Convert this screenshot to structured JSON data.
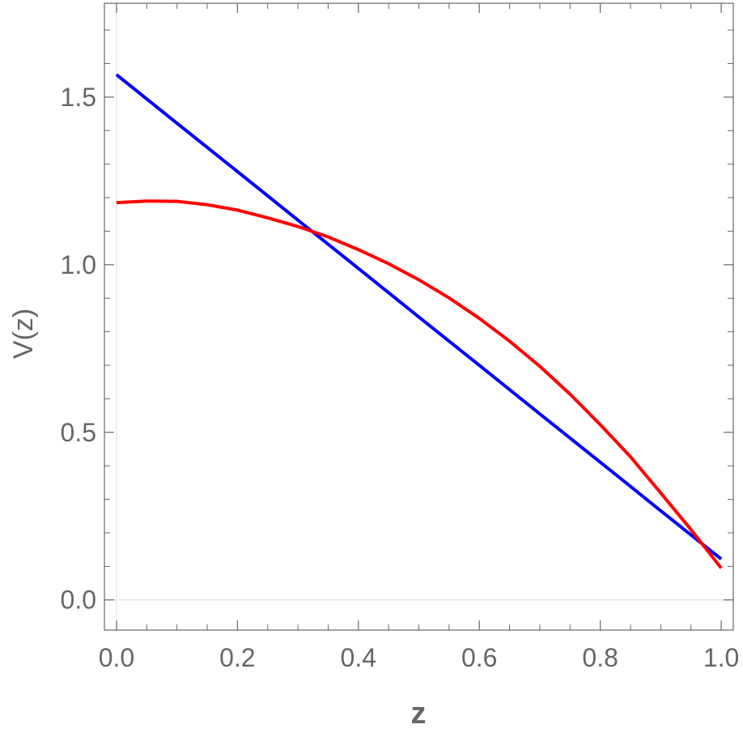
{
  "chart_data": {
    "type": "line",
    "xlabel": "z",
    "ylabel": "V(z)",
    "xlim": [
      -0.02,
      1.02
    ],
    "ylim": [
      -0.09,
      1.78
    ],
    "x_ticks": [
      0.0,
      0.2,
      0.4,
      0.6,
      0.8,
      1.0
    ],
    "x_tick_labels": [
      "0.0",
      "0.2",
      "0.4",
      "0.6",
      "0.8",
      "1.0"
    ],
    "y_ticks": [
      0.0,
      0.5,
      1.0,
      1.5
    ],
    "y_tick_labels": [
      "0.0",
      "0.5",
      "1.0",
      "1.5"
    ],
    "grid": false,
    "series": [
      {
        "color": "#0000ff",
        "x": [
          0.0,
          0.1,
          0.2,
          0.3,
          0.4,
          0.5,
          0.6,
          0.7,
          0.8,
          0.9,
          1.0
        ],
        "y": [
          1.567,
          1.422,
          1.278,
          1.133,
          0.989,
          0.844,
          0.7,
          0.555,
          0.411,
          0.266,
          0.122
        ]
      },
      {
        "color": "#ff0000",
        "x": [
          0.0,
          0.05,
          0.1,
          0.15,
          0.2,
          0.25,
          0.3,
          0.35,
          0.4,
          0.45,
          0.5,
          0.55,
          0.6,
          0.65,
          0.7,
          0.75,
          0.8,
          0.85,
          0.9,
          0.95,
          1.0
        ],
        "y": [
          1.185,
          1.19,
          1.189,
          1.179,
          1.163,
          1.14,
          1.114,
          1.083,
          1.045,
          1.003,
          0.955,
          0.901,
          0.84,
          0.772,
          0.697,
          0.614,
          0.523,
          0.427,
          0.319,
          0.21,
          0.095
        ]
      }
    ]
  }
}
